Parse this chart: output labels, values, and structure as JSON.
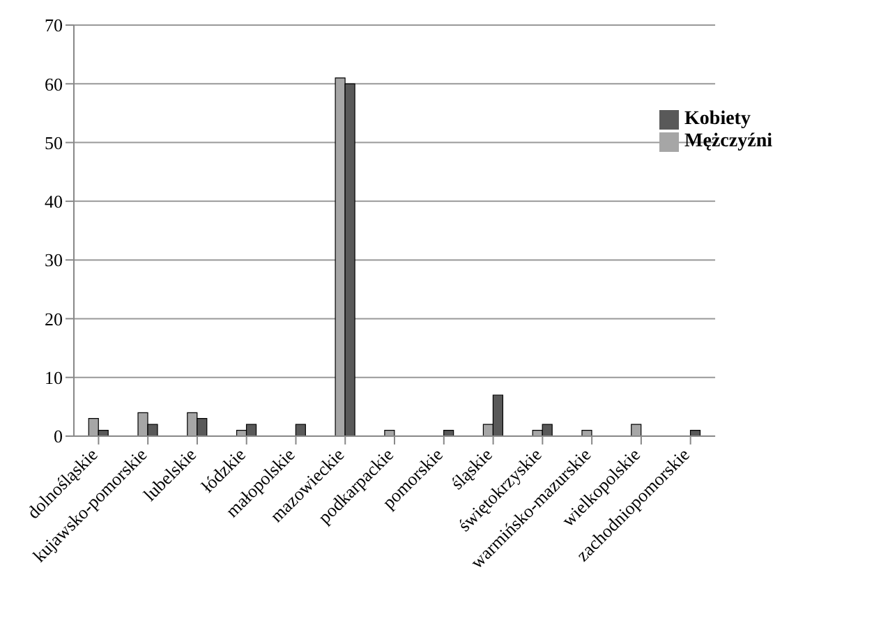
{
  "chart_data": {
    "type": "bar",
    "categories": [
      "dolnośląskie",
      "kujawsko-pomorskie",
      "lubelskie",
      "łódzkie",
      "małopolskie",
      "mazowieckie",
      "podkarpackie",
      "pomorskie",
      "śląskie",
      "świętokrzyskie",
      "warmińsko-mazurskie",
      "wielkopolskie",
      "zachodniopomorskie"
    ],
    "series": [
      {
        "name": "Mężczyźni",
        "color": "#a6a6a6",
        "values": [
          3,
          4,
          4,
          1,
          0,
          61,
          1,
          0,
          2,
          1,
          1,
          2,
          0
        ]
      },
      {
        "name": "Kobiety",
        "color": "#595959",
        "values": [
          1,
          2,
          3,
          2,
          2,
          60,
          0,
          1,
          7,
          2,
          0,
          0,
          1
        ]
      }
    ],
    "ylim": [
      0,
      70
    ],
    "yticks": [
      0,
      10,
      20,
      30,
      40,
      50,
      60,
      70
    ],
    "grid": "y",
    "legend": "right"
  }
}
